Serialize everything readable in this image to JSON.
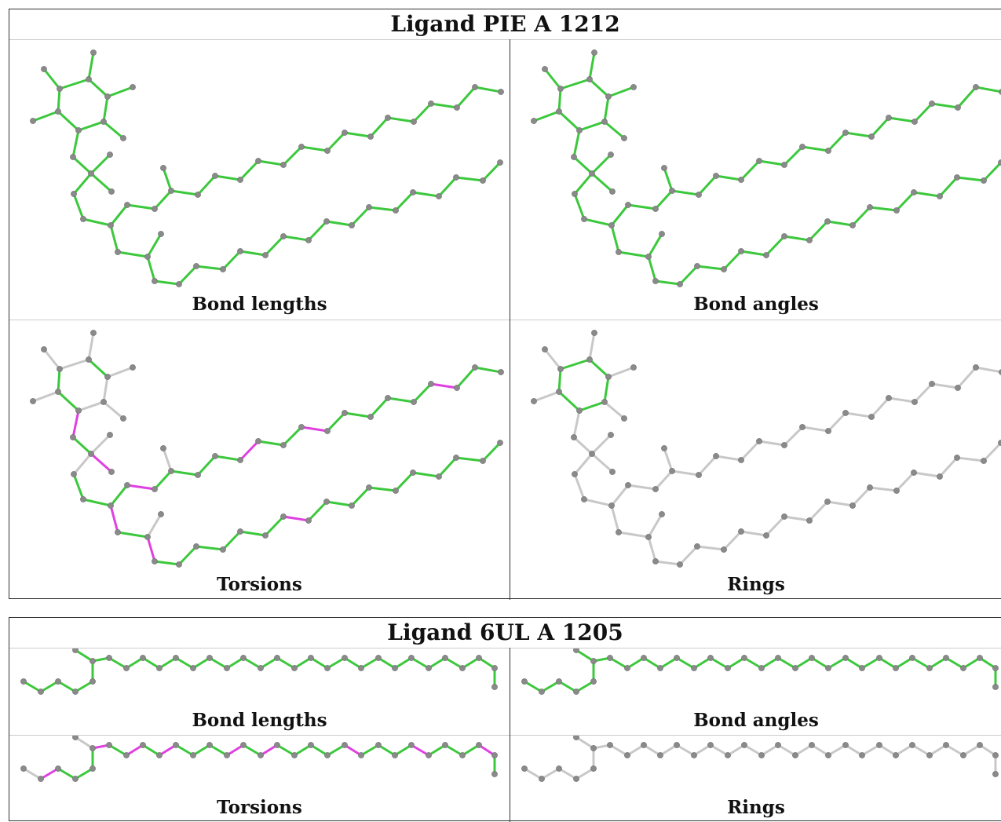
{
  "colors": {
    "ok": "#3cc83c",
    "outlier": "#e040e0",
    "neutral": "#c8c8c8",
    "atom": "#8a8a8a"
  },
  "ligands": [
    {
      "title": "Ligand PIE A 1212",
      "panels": [
        {
          "caption": "Bond lengths",
          "mode": "all-ok"
        },
        {
          "caption": "Bond angles",
          "mode": "all-ok"
        },
        {
          "caption": "Torsions",
          "mode": "torsions"
        },
        {
          "caption": "Rings",
          "mode": "rings"
        }
      ]
    },
    {
      "title": "Ligand 6UL A 1205",
      "panels": [
        {
          "caption": "Bond lengths",
          "mode": "all-ok"
        },
        {
          "caption": "Bond angles",
          "mode": "all-ok"
        },
        {
          "caption": "Torsions",
          "mode": "torsions"
        },
        {
          "caption": "Rings",
          "mode": "rings"
        }
      ]
    }
  ]
}
